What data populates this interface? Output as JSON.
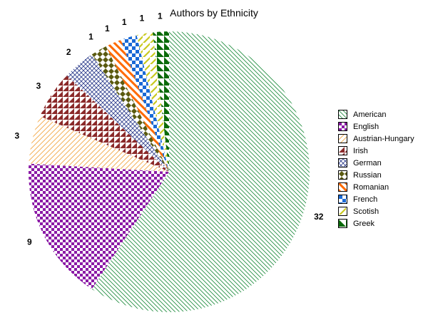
{
  "chart_data": {
    "type": "pie",
    "title": "Authors by Ethnicity",
    "categories": [
      "American",
      "English",
      "Austrian-Hungary",
      "Irish",
      "German",
      "Russian",
      "Romanian",
      "French",
      "Scotish",
      "Greek"
    ],
    "values": [
      32,
      9,
      3,
      3,
      2,
      1,
      1,
      1,
      1,
      1
    ],
    "value_labels": [
      "32",
      "9",
      "3",
      "3",
      "2",
      "1",
      "1",
      "1",
      "1",
      "1"
    ],
    "legend": "right",
    "colors": [
      "#1a8a3a",
      "#8b1aa6",
      "#f2a23a",
      "#8b2a2a",
      "#2a3a8a",
      "#5a5a10",
      "#ff6a00",
      "#1a6ad6",
      "#c8c81a",
      "#0a6a0a"
    ],
    "patterns": [
      "diagonal-lines",
      "checker",
      "diagonal-lines-sparse",
      "triangles",
      "crosshatch",
      "diamonds",
      "thick-diagonal",
      "squares-quarter",
      "half-diagonal",
      "half-triangle"
    ]
  }
}
